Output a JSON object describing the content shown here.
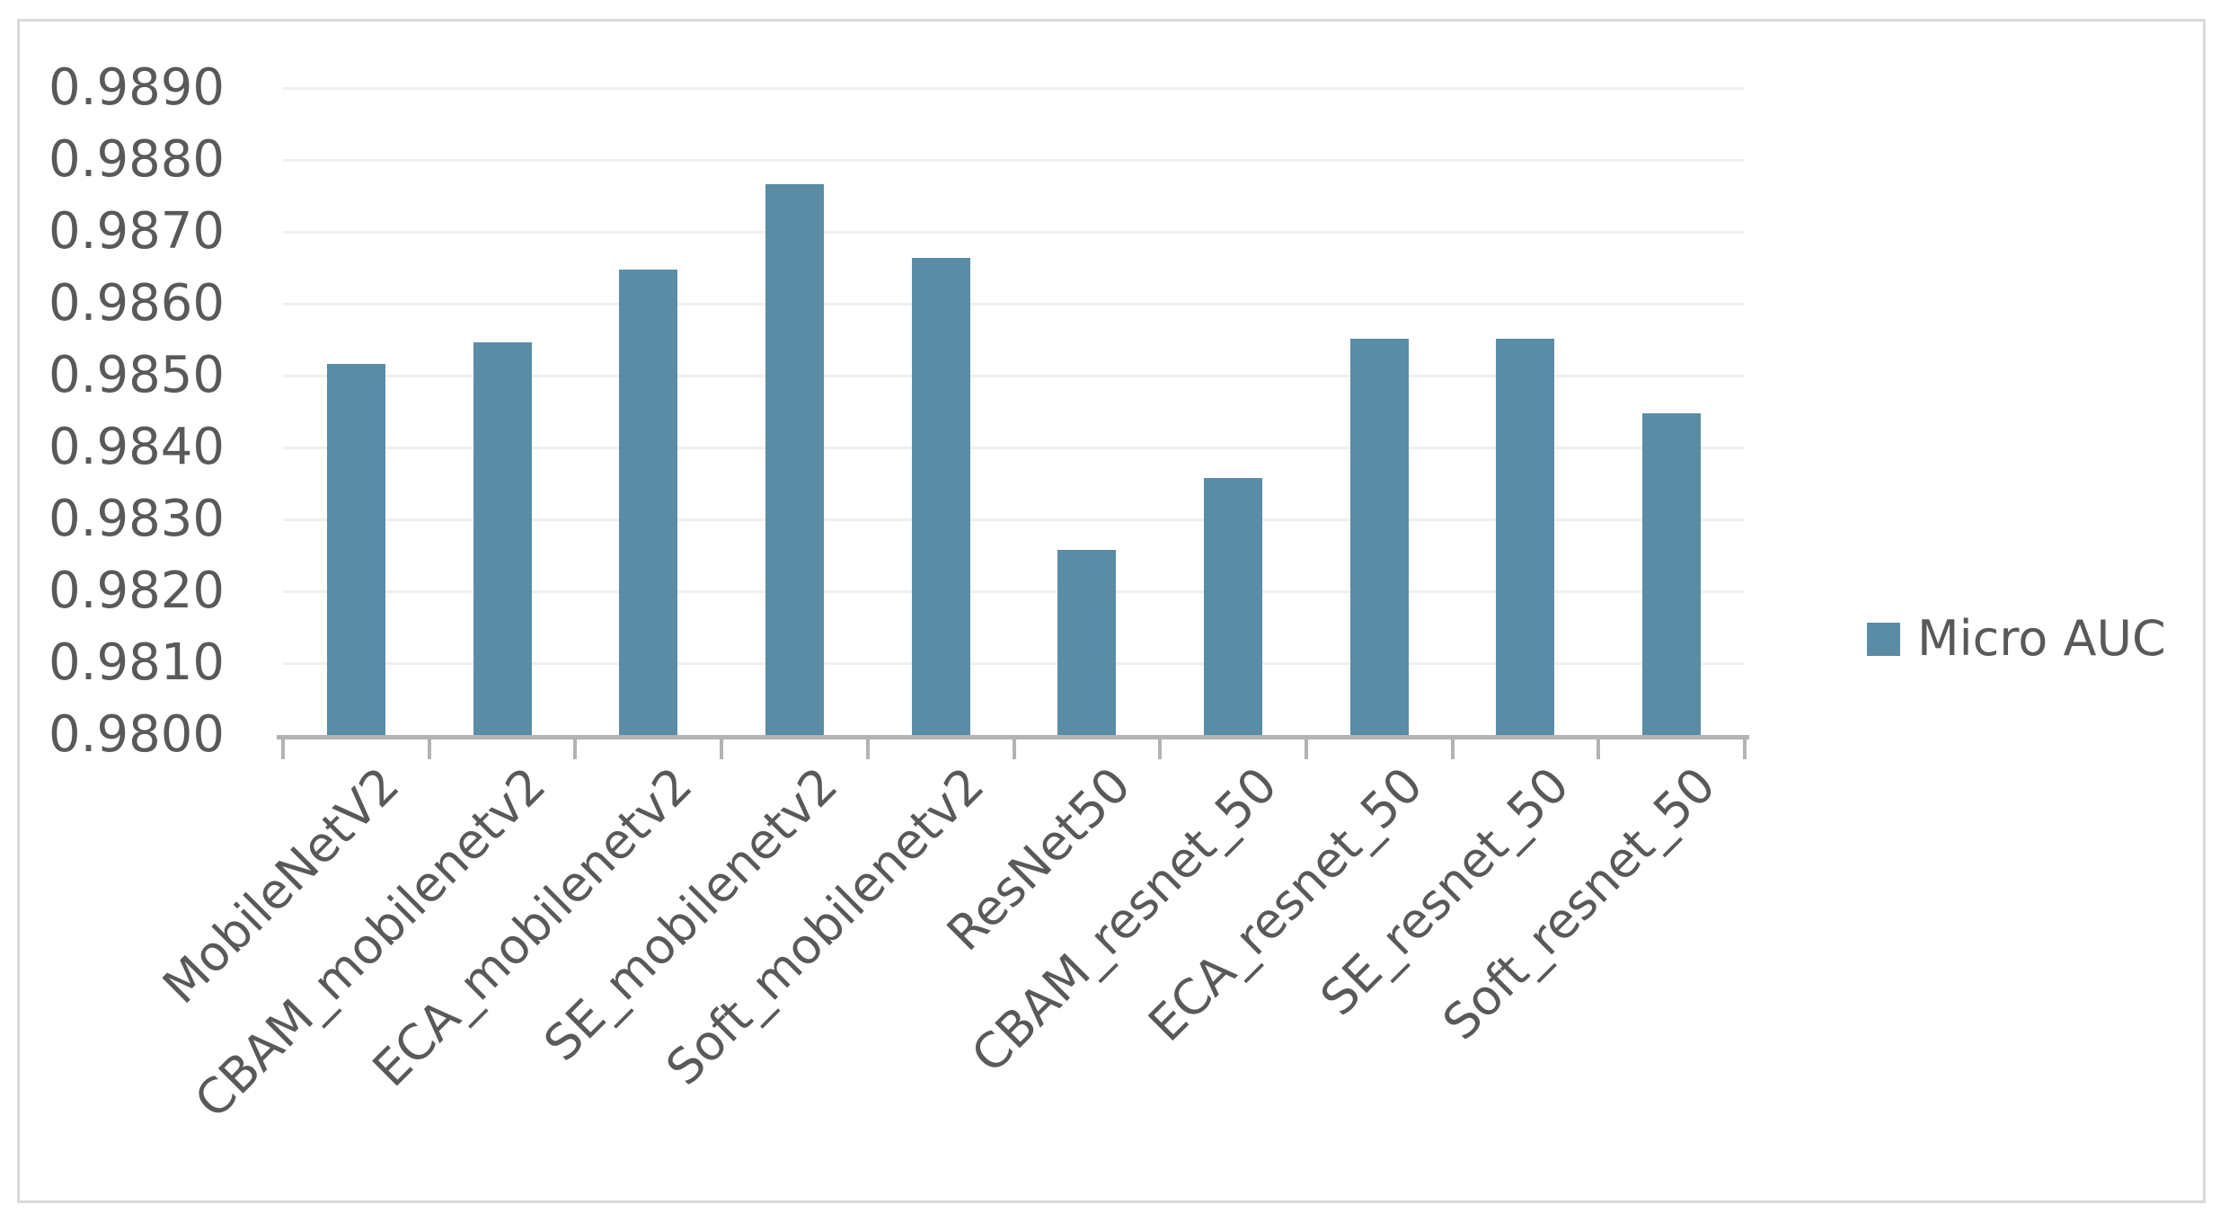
{
  "chart_data": {
    "type": "bar",
    "title": "",
    "categories": [
      "MobileNetV2",
      "CBAM_mobilenetv2",
      "ECA_mobilenetv2",
      "SE_mobilenetv2",
      "Soft_mobilenetv2",
      "ResNet50",
      "CBAM_resnet_50",
      "ECA_resnet_50",
      "SE_resnet_50",
      "Soft_resnet_50"
    ],
    "series": [
      {
        "name": "Micro AUC",
        "values": [
          0.98516,
          0.98546,
          0.98648,
          0.98766,
          0.98664,
          0.98258,
          0.98358,
          0.98551,
          0.98551,
          0.98447
        ]
      }
    ],
    "xlabel": "",
    "ylabel": "",
    "ylim": [
      0.98,
      0.989
    ],
    "ytick_step": 0.001,
    "ytick_labels": [
      "0.9890",
      "0.9880",
      "0.9870",
      "0.9860",
      "0.9850",
      "0.9840",
      "0.9830",
      "0.9820",
      "0.9810",
      "0.9800"
    ],
    "grid": "horizontal",
    "legend_position": "right",
    "x_label_rotation_deg": -45
  },
  "legend": {
    "label": "Micro AUC"
  },
  "colors": {
    "bar_fill": "#5b8ca6",
    "axis_line": "#b3b3b3",
    "gridline": "#efefef",
    "text": "#595959",
    "frame_border": "#d9d9d9",
    "background": "#ffffff"
  }
}
